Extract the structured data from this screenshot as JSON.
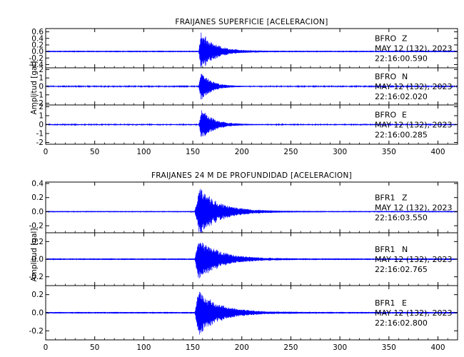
{
  "chart_data": [
    {
      "type": "line",
      "title": "FRAIJANES SUPERFICIE [ACELERACION]",
      "xlabel": "",
      "ylabel": "Amplitud [gal]",
      "xlim": [
        0,
        420
      ],
      "xticks": [
        0,
        50,
        100,
        150,
        200,
        250,
        300,
        350,
        400
      ],
      "line_color": "#0000ff",
      "traces": [
        {
          "name": "BFRO Z",
          "station": "BFRO",
          "component": "Z",
          "date_line": "MAY 12 (132), 2023",
          "time_line": "22:16:00.590",
          "ylim": [
            -0.5,
            0.7
          ],
          "yticks": [
            -0.4,
            -0.2,
            0.0,
            0.2,
            0.4,
            0.6
          ],
          "ytick_labels": [
            "-0.4",
            "-0.2",
            "0.0",
            "0.2",
            "0.4",
            "0.6"
          ],
          "onset": 156,
          "peak_time": 158,
          "peak_amplitude": 0.65,
          "noise_level": 0.025,
          "decay": 14
        },
        {
          "name": "BFRO N",
          "station": "BFRO",
          "component": "N",
          "date_line": "MAY 12 (132), 2023",
          "time_line": "22:16:02.020",
          "ylim": [
            -2.2,
            2.2
          ],
          "yticks": [
            -2,
            -1,
            0,
            1,
            2
          ],
          "ytick_labels": [
            "-2",
            "-1",
            "0",
            "1",
            "2"
          ],
          "onset": 156,
          "peak_time": 158,
          "peak_amplitude": 2.0,
          "noise_level": 0.06,
          "decay": 10
        },
        {
          "name": "BFRO E",
          "station": "BFRO",
          "component": "E",
          "date_line": "MAY 12 (132), 2023",
          "time_line": "22:16:00.285",
          "ylim": [
            -2.2,
            2.2
          ],
          "yticks": [
            -2,
            -1,
            0,
            1,
            2
          ],
          "ytick_labels": [
            "-2",
            "-1",
            "0",
            "1",
            "2"
          ],
          "onset": 156,
          "peak_time": 159,
          "peak_amplitude": 1.9,
          "noise_level": 0.06,
          "decay": 12
        }
      ]
    },
    {
      "type": "line",
      "title": "FRAIJANES 24 M DE PROFUNDIDAD [ACELERACION]",
      "xlabel": "",
      "ylabel": "Amplitud [gal]",
      "xlim": [
        0,
        420
      ],
      "xticks": [
        0,
        50,
        100,
        150,
        200,
        250,
        300,
        350,
        400
      ],
      "line_color": "#0000ff",
      "traces": [
        {
          "name": "BFR1 Z",
          "station": "BFR1",
          "component": "Z",
          "date_line": "MAY 12 (132), 2023",
          "time_line": "22:16:03.550",
          "ylim": [
            -0.3,
            0.42
          ],
          "yticks": [
            -0.2,
            0.0,
            0.2,
            0.4
          ],
          "ytick_labels": [
            "-0.2",
            "0.0",
            "0.2",
            "0.4"
          ],
          "onset": 152,
          "peak_time": 156,
          "peak_amplitude": 0.38,
          "noise_level": 0.01,
          "decay": 20
        },
        {
          "name": "BFR1 N",
          "station": "BFR1",
          "component": "N",
          "date_line": "MAY 12 (132), 2023",
          "time_line": "22:16:02.765",
          "ylim": [
            -0.3,
            0.3
          ],
          "yticks": [
            -0.2,
            0.0,
            0.2
          ],
          "ytick_labels": [
            "-0.2",
            "0.0",
            "0.2"
          ],
          "onset": 152,
          "peak_time": 156,
          "peak_amplitude": 0.27,
          "noise_level": 0.01,
          "decay": 20
        },
        {
          "name": "BFR1 E",
          "station": "BFR1",
          "component": "E",
          "date_line": "MAY 12 (132), 2023",
          "time_line": "22:16:02.800",
          "ylim": [
            -0.3,
            0.3
          ],
          "yticks": [
            -0.2,
            0.0,
            0.2
          ],
          "ytick_labels": [
            "-0.2",
            "0.0",
            "0.2"
          ],
          "onset": 152,
          "peak_time": 156,
          "peak_amplitude": 0.28,
          "noise_level": 0.01,
          "decay": 20
        }
      ]
    }
  ]
}
